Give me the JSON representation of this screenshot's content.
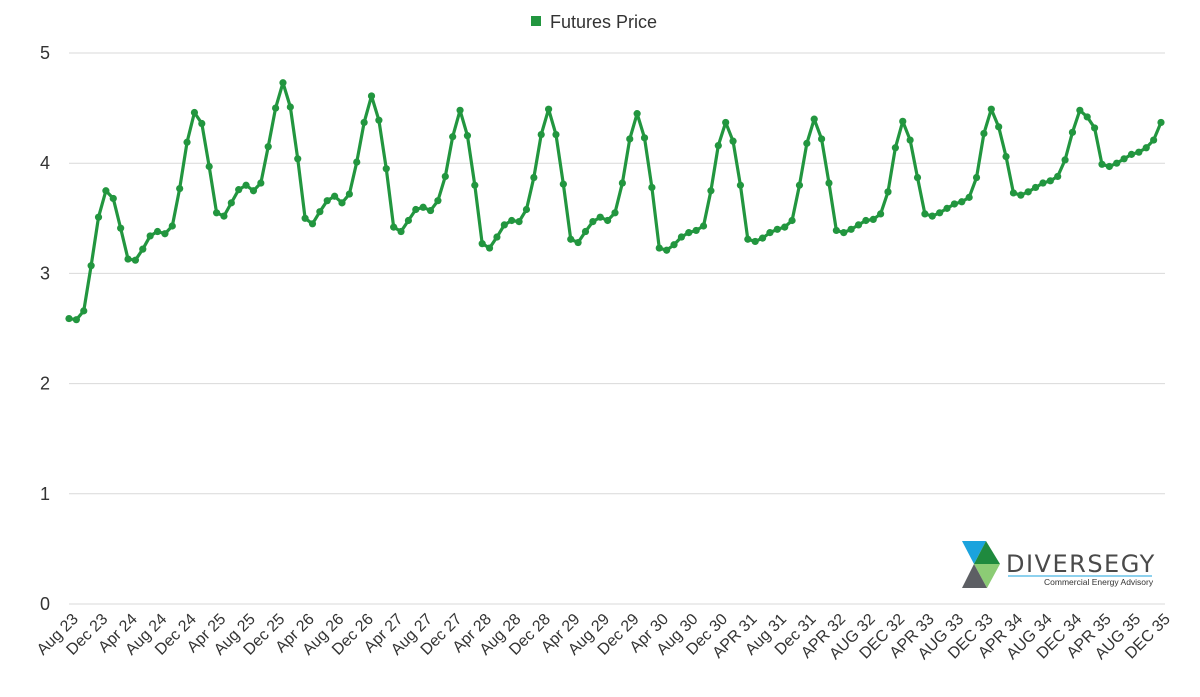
{
  "chart_data": {
    "type": "line",
    "legend": {
      "label": "Futures Price",
      "position": "top-center"
    },
    "ylim": [
      0,
      5
    ],
    "yticks": [
      0,
      1,
      2,
      3,
      4,
      5
    ],
    "grid": true,
    "series": [
      {
        "name": "Futures Price",
        "color": "#22963f",
        "values": [
          2.59,
          2.58,
          2.66,
          3.07,
          3.51,
          3.75,
          3.68,
          3.41,
          3.13,
          3.12,
          3.22,
          3.34,
          3.38,
          3.36,
          3.43,
          3.77,
          4.19,
          4.46,
          4.36,
          3.97,
          3.55,
          3.52,
          3.64,
          3.76,
          3.8,
          3.75,
          3.82,
          4.15,
          4.5,
          4.73,
          4.51,
          4.04,
          3.5,
          3.45,
          3.56,
          3.66,
          3.7,
          3.64,
          3.72,
          4.01,
          4.37,
          4.61,
          4.39,
          3.95,
          3.42,
          3.38,
          3.48,
          3.58,
          3.6,
          3.57,
          3.66,
          3.88,
          4.24,
          4.48,
          4.25,
          3.8,
          3.27,
          3.23,
          3.33,
          3.44,
          3.48,
          3.47,
          3.58,
          3.87,
          4.26,
          4.49,
          4.26,
          3.81,
          3.31,
          3.28,
          3.38,
          3.47,
          3.51,
          3.48,
          3.55,
          3.82,
          4.22,
          4.45,
          4.23,
          3.78,
          3.23,
          3.21,
          3.26,
          3.33,
          3.37,
          3.39,
          3.43,
          3.75,
          4.16,
          4.37,
          4.2,
          3.8,
          3.31,
          3.29,
          3.32,
          3.37,
          3.4,
          3.42,
          3.48,
          3.8,
          4.18,
          4.4,
          4.22,
          3.82,
          3.39,
          3.37,
          3.4,
          3.44,
          3.48,
          3.49,
          3.54,
          3.74,
          4.14,
          4.38,
          4.21,
          3.87,
          3.54,
          3.52,
          3.55,
          3.59,
          3.63,
          3.65,
          3.69,
          3.87,
          4.27,
          4.49,
          4.33,
          4.06,
          3.73,
          3.71,
          3.74,
          3.78,
          3.82,
          3.84,
          3.88,
          4.03,
          4.28,
          4.48,
          4.42,
          4.32,
          3.99,
          3.97,
          4.0,
          4.04,
          4.08,
          4.1,
          4.14,
          4.21,
          4.37
        ]
      }
    ],
    "xticks": [
      "Aug 23",
      "Dec 23",
      "Apr 24",
      "Aug 24",
      "Dec 24",
      "Apr 25",
      "Aug 25",
      "Dec 25",
      "Apr 26",
      "Aug 26",
      "Dec 26",
      "Apr 27",
      "Aug 27",
      "Dec 27",
      "Apr 28",
      "Aug 28",
      "Dec 28",
      "Apr 29",
      "Aug 29",
      "Dec 29",
      "Apr 30",
      "Aug 30",
      "Dec 30",
      "APR 31",
      "Aug 31",
      "Dec 31",
      "APR 32",
      "AUG 32",
      "DEC 32",
      "APR 33",
      "AUG 33",
      "DEC 33",
      "APR 34",
      "AUG 34",
      "DEC 34",
      "APR 35",
      "AUG 35",
      "DEC 35"
    ]
  },
  "logo": {
    "name": "DIVERSEGY",
    "tagline": "Commercial Energy Advisory",
    "colors": [
      "#1ba3dd",
      "#1f8a3e",
      "#8ccc75",
      "#5d5f64"
    ]
  }
}
